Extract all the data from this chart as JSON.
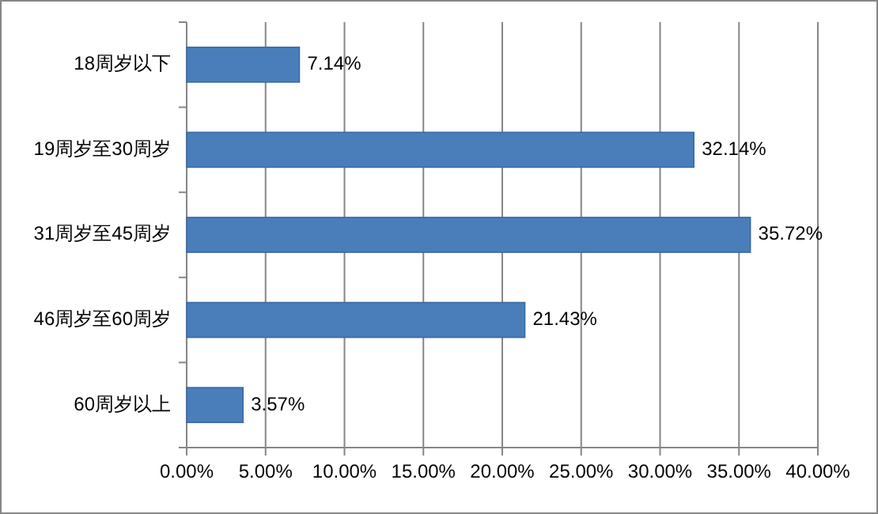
{
  "chart_data": {
    "type": "bar",
    "orientation": "horizontal",
    "categories": [
      "18周岁以下",
      "19周岁至30周岁",
      "31周岁至45周岁",
      "46周岁至60周岁",
      "60周岁以上"
    ],
    "values": [
      7.14,
      32.14,
      35.72,
      21.43,
      3.57
    ],
    "value_labels": [
      "7.14%",
      "32.14%",
      "35.72%",
      "21.43%",
      "3.57%"
    ],
    "color": "#4a7ebb",
    "xlim": [
      0,
      40
    ],
    "xticks": [
      {
        "value": 0,
        "label": "0.00%"
      },
      {
        "value": 5,
        "label": "5.00%"
      },
      {
        "value": 10,
        "label": "10.00%"
      },
      {
        "value": 15,
        "label": "15.00%"
      },
      {
        "value": 20,
        "label": "20.00%"
      },
      {
        "value": 25,
        "label": "25.00%"
      },
      {
        "value": 30,
        "label": "30.00%"
      },
      {
        "value": 35,
        "label": "35.00%"
      },
      {
        "value": 40,
        "label": "40.00%"
      }
    ],
    "grid": "x"
  }
}
